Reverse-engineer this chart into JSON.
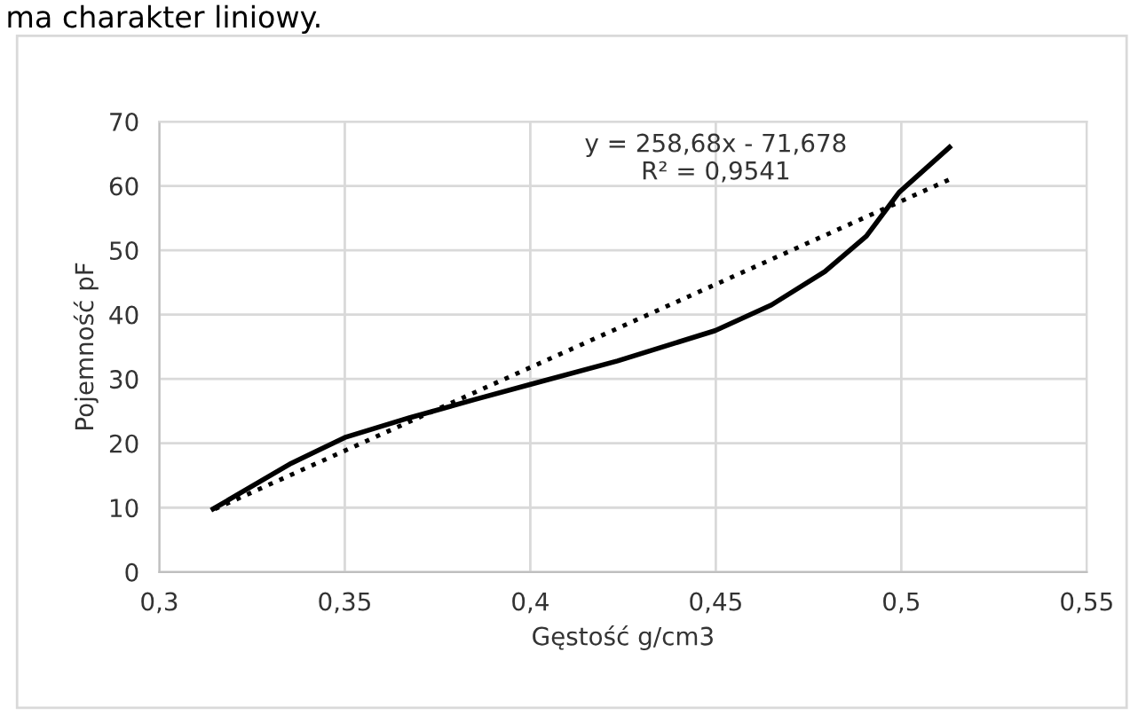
{
  "chart_data": {
    "type": "line",
    "xlabel": "Gęstość g/cm3",
    "ylabel": "Pojemność pF",
    "annotations": [
      "ma charakter liniowy.",
      "y = 258,68x - 71,678\nR² = 0,9541"
    ],
    "series": [
      {
        "color": "#000000",
        "line_style": "solid",
        "x": [
          0.3145,
          0.3356,
          0.35,
          0.3676,
          0.385,
          0.4003,
          0.4235,
          0.4498,
          0.465,
          0.4794,
          0.4906,
          0.4994,
          0.513
        ],
        "values": [
          9.8,
          16.9,
          20.9,
          24.0,
          26.8,
          29.2,
          32.8,
          37.5,
          41.5,
          46.7,
          52.2,
          59.0,
          66.0
        ]
      },
      {
        "color": "#000000",
        "line_style": "dotted",
        "x": [
          0.315,
          0.513
        ],
        "values": [
          9.8,
          61.0
        ]
      }
    ],
    "xlim": [
      0.3,
      0.55
    ],
    "ylim": [
      0,
      70
    ],
    "xticks": [
      {
        "value": 0.3,
        "label": "0,3"
      },
      {
        "value": 0.35,
        "label": "0,35"
      },
      {
        "value": 0.4,
        "label": "0,4"
      },
      {
        "value": 0.45,
        "label": "0,45"
      },
      {
        "value": 0.5,
        "label": "0,5"
      },
      {
        "value": 0.55,
        "label": "0,55"
      }
    ],
    "yticks": [
      0,
      10,
      20,
      30,
      40,
      50,
      60,
      70
    ],
    "grid": true,
    "legend": false,
    "marker": "none"
  }
}
